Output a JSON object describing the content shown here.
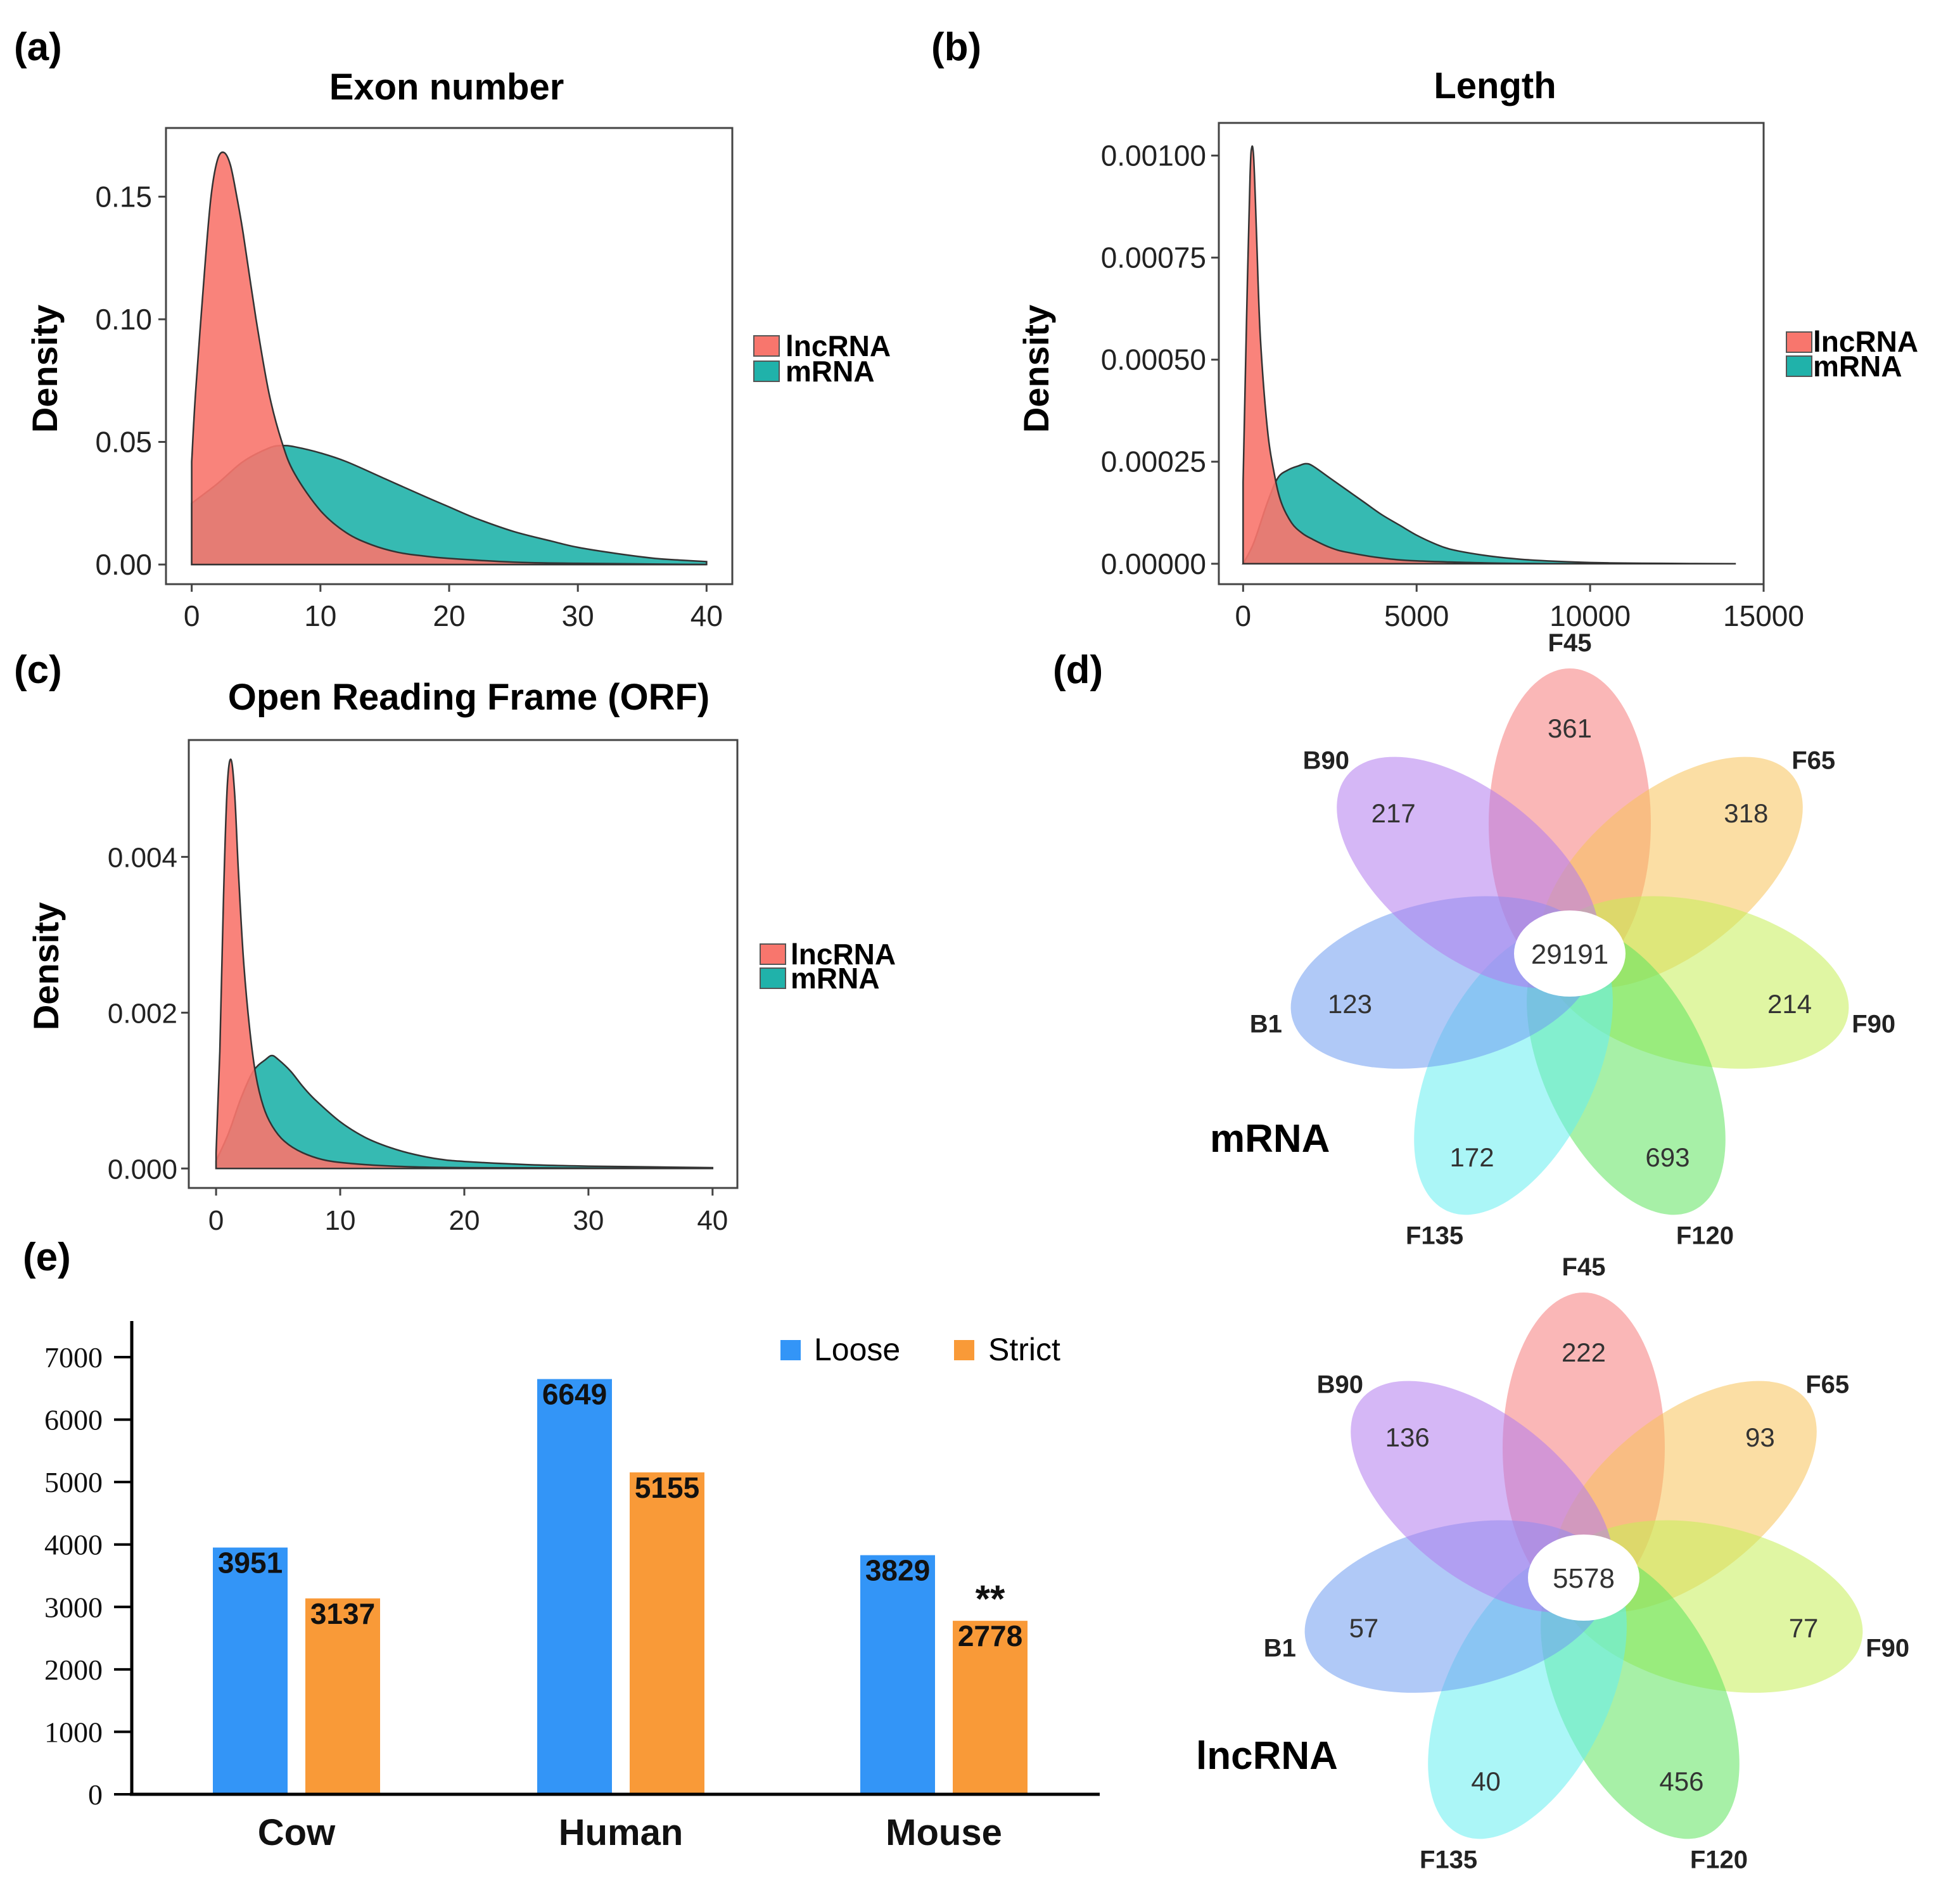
{
  "panels": {
    "a": {
      "tag": "(a)"
    },
    "b": {
      "tag": "(b)"
    },
    "c": {
      "tag": "(c)"
    },
    "d": {
      "tag": "(d)"
    },
    "e": {
      "tag": "(e)"
    }
  },
  "colors": {
    "lncrna": "#f8766d",
    "mrna": "#20b2aa",
    "loose": "#3395f7",
    "strict": "#f99a38",
    "petals": {
      "F45": "#f57b7b",
      "F65": "#f7c25a",
      "F90": "#c6ee58",
      "F120": "#5ee35e",
      "F135": "#66eef0",
      "B1": "#6f9cf0",
      "B90": "#b27bee"
    }
  },
  "chart_data": [
    {
      "id": "a",
      "type": "area",
      "subtype": "density",
      "title": "Exon number",
      "xlabel": "",
      "ylabel": "Density",
      "xlim": [
        -2,
        42
      ],
      "ylim": [
        -0.008,
        0.178
      ],
      "xticks": [
        0,
        10,
        20,
        30,
        40
      ],
      "xtick_labels": [
        "0",
        "10",
        "20",
        "30",
        "40"
      ],
      "yticks": [
        0,
        0.05,
        0.1,
        0.15
      ],
      "ytick_labels": [
        "0.00",
        "0.05",
        "0.10",
        "0.15"
      ],
      "legend": [
        "lncRNA",
        "mRNA"
      ],
      "legend_position": "right",
      "series": [
        {
          "name": "mRNA",
          "x": [
            0,
            2,
            4,
            6,
            7,
            8,
            10,
            12,
            15,
            18,
            20,
            22,
            25,
            28,
            30,
            33,
            36,
            38,
            40
          ],
          "y": [
            0.025,
            0.033,
            0.042,
            0.0475,
            0.0485,
            0.048,
            0.0455,
            0.042,
            0.035,
            0.028,
            0.0235,
            0.019,
            0.0135,
            0.0095,
            0.007,
            0.0045,
            0.0025,
            0.0018,
            0.0012
          ]
        },
        {
          "name": "lncRNA",
          "x": [
            0,
            0.3,
            1,
            1.5,
            2,
            2.5,
            3,
            3.5,
            4,
            5,
            6,
            7,
            8,
            10,
            12,
            14,
            16,
            18,
            20,
            25,
            30,
            40
          ],
          "y": [
            0.042,
            0.07,
            0.12,
            0.15,
            0.165,
            0.168,
            0.163,
            0.15,
            0.135,
            0.1,
            0.07,
            0.05,
            0.037,
            0.022,
            0.013,
            0.008,
            0.005,
            0.0035,
            0.0025,
            0.001,
            0.0005,
            0
          ]
        }
      ]
    },
    {
      "id": "b",
      "type": "area",
      "subtype": "density",
      "title": "Length",
      "xlabel": "",
      "ylabel": "Density",
      "xlim": [
        -700,
        15000
      ],
      "ylim": [
        -5e-05,
        0.00108
      ],
      "xticks": [
        0,
        5000,
        10000,
        15000
      ],
      "xtick_labels": [
        "0",
        "5000",
        "10000",
        "15000"
      ],
      "yticks": [
        0,
        0.00025,
        0.0005,
        0.00075,
        0.001
      ],
      "ytick_labels": [
        "0.00000",
        "0.00025",
        "0.00050",
        "0.00075",
        "0.00100"
      ],
      "legend": [
        "lncRNA",
        "mRNA"
      ],
      "legend_position": "right",
      "series": [
        {
          "name": "mRNA",
          "x": [
            0,
            300,
            700,
            1000,
            1300,
            1600,
            1800,
            2000,
            2500,
            3000,
            3500,
            4000,
            4500,
            5000,
            5500,
            6000,
            7000,
            8000,
            9000,
            10000,
            11000,
            12000,
            13000,
            14200
          ],
          "y": [
            0,
            5e-05,
            0.00015,
            0.00021,
            0.00023,
            0.00024,
            0.000245,
            0.00024,
            0.00021,
            0.00018,
            0.00015,
            0.00012,
            9.5e-05,
            7e-05,
            5e-05,
            3.5e-05,
            2e-05,
            1.1e-05,
            6e-06,
            3e-06,
            1.5e-06,
            1e-06,
            5e-07,
            0
          ]
        },
        {
          "name": "lncRNA",
          "x": [
            0,
            100,
            200,
            250,
            300,
            350,
            400,
            500,
            700,
            900,
            1100,
            1400,
            1700,
            2000,
            2500,
            3000,
            4000,
            5000,
            7000,
            9000
          ],
          "y": [
            0.0002,
            0.0006,
            0.00095,
            0.00102,
            0.001,
            0.0009,
            0.00077,
            0.00055,
            0.00033,
            0.00022,
            0.00015,
            0.0001,
            7.5e-05,
            6e-05,
            4e-05,
            2.8e-05,
            1.4e-05,
            7e-06,
            2e-06,
            0
          ]
        }
      ]
    },
    {
      "id": "c",
      "type": "area",
      "subtype": "density",
      "title": "Open Reading Frame (ORF)",
      "xlabel": "",
      "ylabel": "Density",
      "xlim": [
        -2.2,
        42
      ],
      "ylim": [
        -0.00025,
        0.0055
      ],
      "xticks": [
        0,
        10,
        20,
        30,
        40
      ],
      "xtick_labels": [
        "0",
        "10",
        "20",
        "30",
        "40"
      ],
      "yticks": [
        0,
        0.002,
        0.004
      ],
      "ytick_labels": [
        "0.000",
        "0.002",
        "0.004"
      ],
      "legend": [
        "lncRNA",
        "mRNA"
      ],
      "legend_position": "right",
      "series": [
        {
          "name": "mRNA",
          "x": [
            0,
            1,
            2,
            3,
            4,
            4.5,
            5,
            6,
            7,
            8,
            10,
            12,
            14,
            16,
            18,
            20,
            25,
            30,
            35,
            40
          ],
          "y": [
            0.0001,
            0.00045,
            0.0009,
            0.00125,
            0.0014,
            0.00145,
            0.0014,
            0.00125,
            0.00105,
            0.00088,
            0.0006,
            0.0004,
            0.00027,
            0.00018,
            0.00012,
            9e-05,
            5e-05,
            3e-05,
            2e-05,
            1e-05
          ]
        },
        {
          "name": "lncRNA",
          "x": [
            0,
            0.3,
            0.6,
            0.9,
            1.2,
            1.5,
            1.8,
            2.2,
            2.7,
            3.2,
            3.8,
            4.5,
            5.5,
            7,
            9,
            12,
            16,
            20,
            30,
            40
          ],
          "y": [
            0.0002,
            0.0015,
            0.0035,
            0.0049,
            0.00525,
            0.0048,
            0.0038,
            0.0027,
            0.0018,
            0.0012,
            0.0008,
            0.00055,
            0.00035,
            0.0002,
            0.0001,
            5e-05,
            2e-05,
            1e-05,
            5e-06,
            0
          ]
        }
      ]
    },
    {
      "id": "d-mrna",
      "type": "venn",
      "title": "mRNA",
      "center": {
        "label": "29191",
        "value": 29191
      },
      "petals": [
        {
          "set": "F45",
          "value": 361,
          "text": "361",
          "angle": 0
        },
        {
          "set": "F65",
          "value": 318,
          "text": "318",
          "angle": 51.43
        },
        {
          "set": "F90",
          "value": 214,
          "text": "214",
          "angle": 102.86
        },
        {
          "set": "F120",
          "value": 693,
          "text": "693",
          "angle": 154.29
        },
        {
          "set": "F135",
          "value": 172,
          "text": "172",
          "angle": 205.71
        },
        {
          "set": "B1",
          "value": 123,
          "text": "123",
          "angle": 257.14
        },
        {
          "set": "B90",
          "value": 217,
          "text": "217",
          "angle": 308.57
        }
      ]
    },
    {
      "id": "d-lncrna",
      "type": "venn",
      "title": "lncRNA",
      "center": {
        "label": "5578",
        "value": 5578
      },
      "petals": [
        {
          "set": "F45",
          "value": 222,
          "text": "222",
          "angle": 0
        },
        {
          "set": "F65",
          "value": 93,
          "text": "93",
          "angle": 51.43
        },
        {
          "set": "F90",
          "value": 77,
          "text": "77",
          "angle": 102.86
        },
        {
          "set": "F120",
          "value": 456,
          "text": "456",
          "angle": 154.29
        },
        {
          "set": "F135",
          "value": 40,
          "text": "40",
          "angle": 205.71
        },
        {
          "set": "B1",
          "value": 57,
          "text": "57",
          "angle": 257.14
        },
        {
          "set": "B90",
          "value": 136,
          "text": "136",
          "angle": 308.57
        }
      ]
    },
    {
      "id": "e",
      "type": "bar",
      "title": "",
      "xlabel": "",
      "ylabel": "",
      "categories": [
        "Cow",
        "Human",
        "Mouse"
      ],
      "ylim": [
        0,
        7500
      ],
      "yticks": [
        0,
        1000,
        2000,
        3000,
        4000,
        5000,
        6000,
        7000
      ],
      "ytick_labels": [
        "0",
        "1000",
        "2000",
        "3000",
        "4000",
        "5000",
        "6000",
        "7000"
      ],
      "legend": [
        "Loose",
        "Strict"
      ],
      "legend_position": "top-right",
      "series": [
        {
          "name": "Loose",
          "values": [
            3951,
            6649,
            3829
          ],
          "labels": [
            "3951",
            "6649",
            "3829"
          ]
        },
        {
          "name": "Strict",
          "values": [
            3137,
            5155,
            2778
          ],
          "labels": [
            "3137",
            "5155",
            "2778"
          ]
        }
      ],
      "annotations": [
        {
          "category": "Mouse",
          "series": "Strict",
          "text": "**"
        }
      ]
    }
  ]
}
